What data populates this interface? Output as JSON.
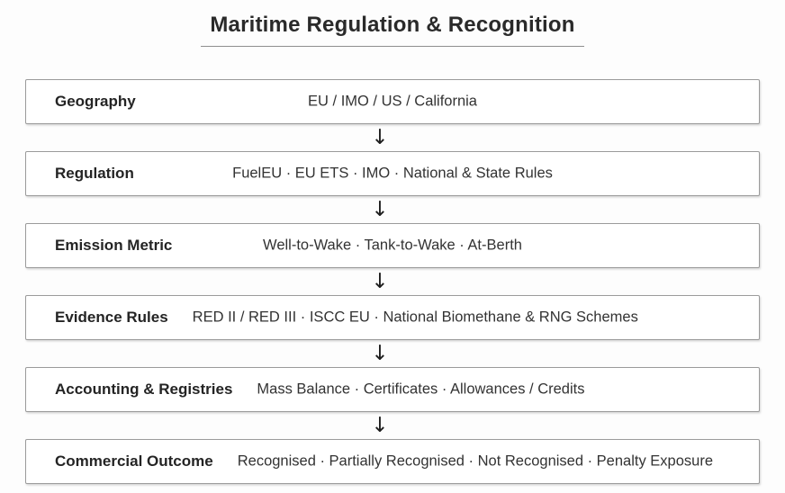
{
  "title": "Maritime Regulation & Recognition",
  "flow": {
    "arrow_glyph": "↓",
    "steps": [
      {
        "label": "Geography",
        "items": "EU / IMO / US / California"
      },
      {
        "label": "Regulation",
        "items": "FuelEU · EU ETS · IMO · National & State Rules"
      },
      {
        "label": "Emission Metric",
        "items": "Well-to-Wake · Tank-to-Wake · At-Berth"
      },
      {
        "label": "Evidence Rules",
        "items": "RED II / RED III · ISCC EU · National Biomethane & RNG Schemes"
      },
      {
        "label": "Accounting & Registries",
        "items": "Mass Balance · Certificates · Allowances / Credits"
      },
      {
        "label": "Commercial Outcome",
        "items": "Recognised · Partially Recognised · Not Recognised · Penalty Exposure"
      }
    ]
  },
  "colors": {
    "background": "#fdfdfd",
    "box_background": "#ffffff",
    "box_border": "#9b9b9b",
    "title_text": "#2a2a2a",
    "title_underline": "#8f8f8f",
    "label_text": "#242424",
    "items_text": "#333333",
    "arrow": "#1e1e1e"
  }
}
